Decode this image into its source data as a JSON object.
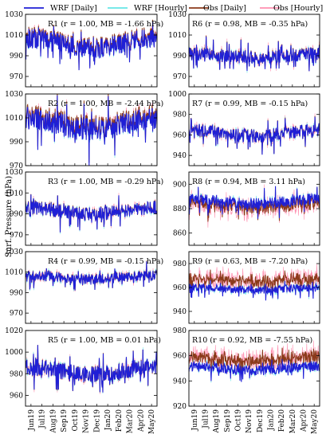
{
  "legend": [
    {
      "name": "WRF [Daily]",
      "color": "#1f1fd6",
      "style": "line"
    },
    {
      "name": "WRF [Hourly]",
      "color": "#66e6e6",
      "style": "line"
    },
    {
      "name": "Obs [Daily]",
      "color": "#8b3a1a",
      "style": "line"
    },
    {
      "name": "Obs [Hourly]",
      "color": "#ff8fb0",
      "style": "line"
    }
  ],
  "ylabel": "Surf. Pressure (hPa)",
  "months": [
    "Jun19",
    "Jul19",
    "Aug19",
    "Sep19",
    "Oct19",
    "Nov19",
    "Dec19",
    "Jan20",
    "Feb20",
    "Mar20",
    "Apr20",
    "May20"
  ],
  "chart_data": [
    {
      "type": "line",
      "region": "R1",
      "label": "R1 (r = 1.00, MB = -1.66 hPa)",
      "ylim": [
        960,
        1030
      ],
      "yticks": [
        970,
        990,
        1010,
        1030
      ],
      "base": 1002,
      "amp": 8,
      "spike": 12,
      "bias": -1.66,
      "noise": 0.6
    },
    {
      "type": "line",
      "region": "R2",
      "label": "R2 (r = 1.00, MB = -2.44 hPa)",
      "ylim": [
        970,
        1030
      ],
      "yticks": [
        970,
        990,
        1010,
        1030
      ],
      "base": 1005,
      "amp": 8,
      "spike": 12,
      "bias": -2.44,
      "noise": 0.6
    },
    {
      "type": "line",
      "region": "R3",
      "label": "R3 (r = 1.00, MB = -0.29 hPa)",
      "ylim": [
        960,
        1030
      ],
      "yticks": [
        970,
        990,
        1010,
        1030
      ],
      "base": 993,
      "amp": 5,
      "spike": 8,
      "bias": -0.29,
      "noise": 0.6
    },
    {
      "type": "line",
      "region": "R4",
      "label": "R4 (r = 0.99, MB = -0.15 hPa)",
      "ylim": [
        960,
        1030
      ],
      "yticks": [
        970,
        990,
        1010,
        1030
      ],
      "base": 1005,
      "amp": 3,
      "spike": 6,
      "bias": -0.15,
      "noise": 0.6
    },
    {
      "type": "line",
      "region": "R5",
      "label": "R5 (r = 1.00, MB = 0.01 hPa)",
      "ylim": [
        950,
        1020
      ],
      "yticks": [
        960,
        980,
        1000,
        1020
      ],
      "base": 983,
      "amp": 6,
      "spike": 10,
      "bias": 0.01,
      "noise": 0.6
    },
    {
      "type": "line",
      "region": "R6",
      "label": "R6 (r = 0.98, MB = -0.35 hPa)",
      "ylim": [
        960,
        1030
      ],
      "yticks": [
        970,
        990,
        1010,
        1030
      ],
      "base": 990,
      "amp": 3,
      "spike": 8,
      "bias": -0.35,
      "noise": 0.8
    },
    {
      "type": "line",
      "region": "R7",
      "label": "R7 (r = 0.99, MB = -0.15 hPa)",
      "ylim": [
        930,
        1000
      ],
      "yticks": [
        940,
        960,
        980,
        1000
      ],
      "base": 962,
      "amp": 5,
      "spike": 8,
      "bias": -0.15,
      "noise": 0.8
    },
    {
      "type": "line",
      "region": "R8",
      "label": "R8 (r = 0.94, MB = 3.11 hPa)",
      "ylim": [
        850,
        910
      ],
      "yticks": [
        860,
        880,
        900
      ],
      "base": 886,
      "amp": 3,
      "spike": 6,
      "bias": 3.11,
      "noise": 2.5
    },
    {
      "type": "line",
      "region": "R9",
      "label": "R9 (r = 0.63, MB = -7.20 hPa)",
      "ylim": [
        930,
        990
      ],
      "yticks": [
        940,
        960,
        980
      ],
      "base": 959,
      "amp": 2,
      "spike": 4,
      "bias": -7.2,
      "noise": 3
    },
    {
      "type": "line",
      "region": "R10",
      "label": "R10 (r = 0.92, MB = -7.55 hPa)",
      "ylim": [
        920,
        980
      ],
      "yticks": [
        920,
        940,
        960,
        980
      ],
      "base": 950,
      "amp": 3,
      "spike": 5,
      "bias": -7.55,
      "noise": 3
    }
  ]
}
